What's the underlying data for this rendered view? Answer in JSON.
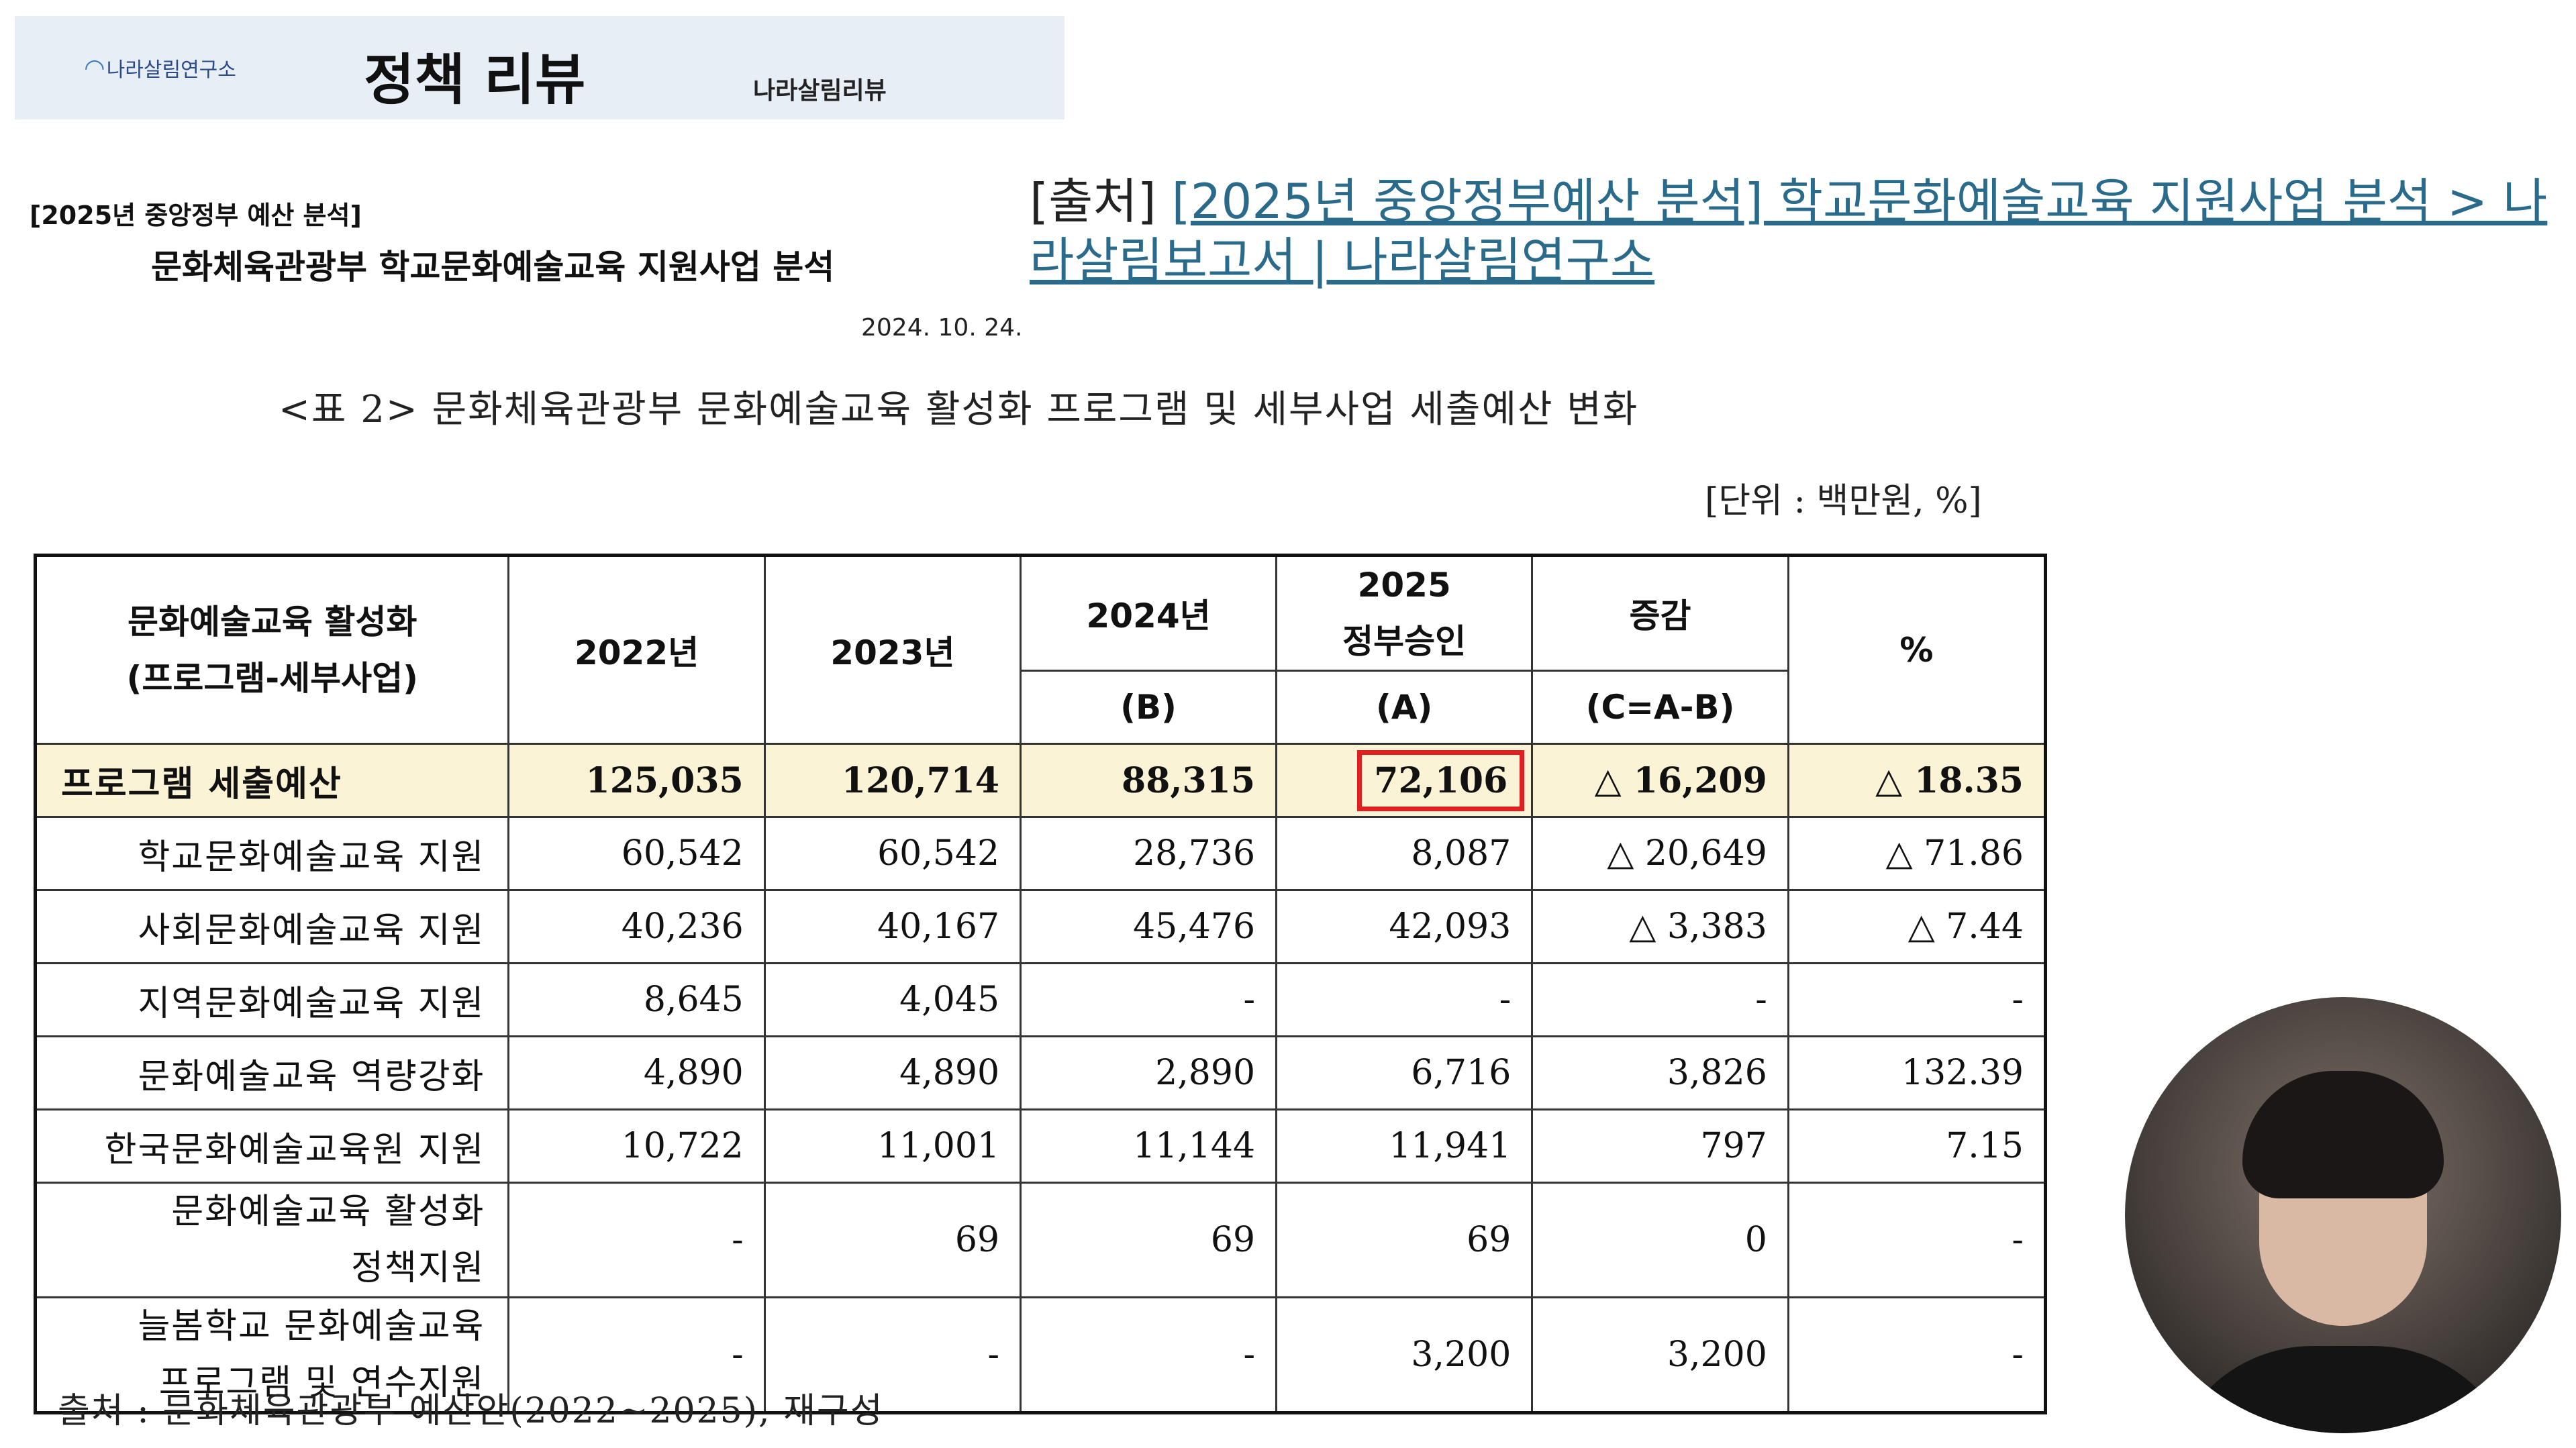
{
  "banner": {
    "logo_text": "나라살림연구소",
    "title": "정책 리뷰",
    "subtitle": "나라살림리뷰"
  },
  "document": {
    "label": "[2025년 중앙정부 예산 분석]",
    "title": "문화체육관광부 학교문화예술교육 지원사업 분석",
    "date": "2024. 10. 24."
  },
  "source": {
    "prefix": "[출처]",
    "link_text": "[2025년 중앙정부예산 분석] 학교문화예술교육 지원사업 분석 > 나라살림보고서 | 나라살림연구소"
  },
  "table": {
    "caption": "<표 2> 문화체육관광부 문화예술교육 활성화 프로그램 및 세부사업 세출예산 변화",
    "unit": "[단위 : 백만원, %]",
    "headers": {
      "name_line1": "문화예술교육 활성화",
      "name_line2": "(프로그램-세부사업)",
      "y2022": "2022년",
      "y2023": "2023년",
      "y2024": "2024년",
      "y2024_sub": "(B)",
      "y2025_line1": "2025",
      "y2025_line2": "정부승인",
      "y2025_sub": "(A)",
      "change": "증감",
      "change_sub": "(C=A-B)",
      "pct": "%"
    },
    "program_row": {
      "name": "프로그램 세출예산",
      "y2022": "125,035",
      "y2023": "120,714",
      "y2024": "88,315",
      "y2025": "72,106",
      "change": "△ 16,209",
      "pct": "△ 18.35"
    },
    "rows": [
      {
        "name1": "학교문화예술교육 지원",
        "name2": "",
        "y2022": "60,542",
        "y2023": "60,542",
        "y2024": "28,736",
        "y2025": "8,087",
        "change": "△ 20,649",
        "pct": "△ 71.86"
      },
      {
        "name1": "사회문화예술교육 지원",
        "name2": "",
        "y2022": "40,236",
        "y2023": "40,167",
        "y2024": "45,476",
        "y2025": "42,093",
        "change": "△ 3,383",
        "pct": "△ 7.44"
      },
      {
        "name1": "지역문화예술교육 지원",
        "name2": "",
        "y2022": "8,645",
        "y2023": "4,045",
        "y2024": "-",
        "y2025": "-",
        "change": "-",
        "pct": "-"
      },
      {
        "name1": "문화예술교육 역량강화",
        "name2": "",
        "y2022": "4,890",
        "y2023": "4,890",
        "y2024": "2,890",
        "y2025": "6,716",
        "change": "3,826",
        "pct": "132.39"
      },
      {
        "name1": "한국문화예술교육원 지원",
        "name2": "",
        "y2022": "10,722",
        "y2023": "11,001",
        "y2024": "11,144",
        "y2025": "11,941",
        "change": "797",
        "pct": "7.15"
      },
      {
        "name1": "문화예술교육 활성화",
        "name2": "정책지원",
        "y2022": "-",
        "y2023": "69",
        "y2024": "69",
        "y2025": "69",
        "change": "0",
        "pct": "-"
      },
      {
        "name1": "늘봄학교 문화예술교육",
        "name2": "프로그램 및 연수지원",
        "y2022": "-",
        "y2023": "-",
        "y2024": "-",
        "y2025": "3,200",
        "change": "3,200",
        "pct": "-"
      }
    ],
    "footnote": "출처 : 문화체육관광부 예산안(2022~2025), 재구성"
  },
  "colors": {
    "banner_bg": "#e8eef6",
    "program_row_bg": "#fbf3d6",
    "highlight_box": "#e02020",
    "link": "#2a6a8a"
  }
}
